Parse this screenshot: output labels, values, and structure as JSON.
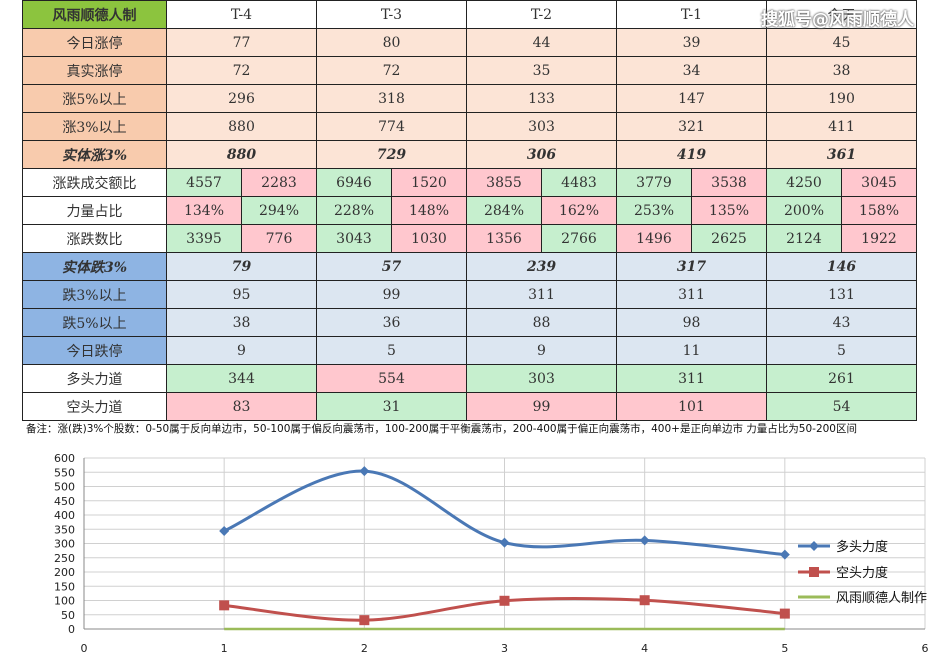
{
  "watermark": "搜狐号@风雨顺德人",
  "table": {
    "title": "风雨顺德人制",
    "columns": [
      "T-4",
      "T-3",
      "T-2",
      "T-1",
      "今天"
    ],
    "rows_up": [
      {
        "label": "今日涨停",
        "values": [
          "77",
          "80",
          "44",
          "39",
          "45"
        ]
      },
      {
        "label": "真实涨停",
        "values": [
          "72",
          "72",
          "35",
          "34",
          "38"
        ]
      },
      {
        "label": "涨5%以上",
        "values": [
          "296",
          "318",
          "133",
          "147",
          "190"
        ]
      },
      {
        "label": "涨3%以上",
        "values": [
          "880",
          "774",
          "303",
          "321",
          "411"
        ]
      },
      {
        "label": "实体涨3%",
        "values": [
          "880",
          "729",
          "306",
          "419",
          "361"
        ]
      }
    ],
    "pair_rows": [
      {
        "label": "涨跌成交额比",
        "values": [
          "4557",
          "2283",
          "6946",
          "1520",
          "3855",
          "4483",
          "3779",
          "3538",
          "4250",
          "3045"
        ]
      },
      {
        "label": "力量占比",
        "values": [
          "134%",
          "294%",
          "228%",
          "148%",
          "284%",
          "162%",
          "253%",
          "135%",
          "200%",
          "158%"
        ]
      },
      {
        "label": "涨跌数比",
        "values": [
          "3395",
          "776",
          "3043",
          "1030",
          "1356",
          "2766",
          "1496",
          "2625",
          "2124",
          "1922"
        ]
      }
    ],
    "rows_down": [
      {
        "label": "实体跌3%",
        "values": [
          "79",
          "57",
          "239",
          "317",
          "146"
        ]
      },
      {
        "label": "跌3%以上",
        "values": [
          "95",
          "99",
          "311",
          "311",
          "131"
        ]
      },
      {
        "label": "跌5%以上",
        "values": [
          "38",
          "36",
          "88",
          "98",
          "43"
        ]
      },
      {
        "label": "今日跌停",
        "values": [
          "9",
          "5",
          "9",
          "11",
          "5"
        ]
      }
    ],
    "force_rows": [
      {
        "label": "多头力道",
        "values": [
          "344",
          "554",
          "303",
          "311",
          "261"
        ]
      },
      {
        "label": "空头力道",
        "values": [
          "83",
          "31",
          "99",
          "101",
          "54"
        ]
      }
    ],
    "note": "备注：涨(跌)3%个股数：0-50属于反向单边市，50-100属于偏反向震荡市，100-200属于平衡震荡市，200-400属于偏正向震荡市，400+是正向单边市 力量占比为50-200区间"
  },
  "colors": {
    "bull": "#4a78b5",
    "bear": "#c0504d",
    "third": "#9bbb59",
    "up_value": "#2aa02a",
    "down_value": "#e00000",
    "positive_cell": "#c6efce",
    "negative_cell": "#ffc7ce"
  },
  "chart_data": {
    "type": "line",
    "x": [
      1,
      2,
      3,
      4,
      5
    ],
    "xlim": [
      0,
      6
    ],
    "ylim": [
      0,
      600
    ],
    "xticks": [
      "0",
      "1",
      "2",
      "3",
      "4",
      "5",
      "6"
    ],
    "yticks": [
      "0",
      "50",
      "100",
      "150",
      "200",
      "250",
      "300",
      "350",
      "400",
      "450",
      "500",
      "550",
      "600"
    ],
    "series": [
      {
        "name": "多头力度",
        "values": [
          344,
          554,
          303,
          311,
          261
        ]
      },
      {
        "name": "空头力度",
        "values": [
          83,
          31,
          99,
          101,
          54
        ]
      },
      {
        "name": "风雨顺德人制作",
        "values": [
          0,
          0,
          0,
          0,
          0
        ]
      }
    ],
    "grid": true,
    "legend": "right"
  }
}
